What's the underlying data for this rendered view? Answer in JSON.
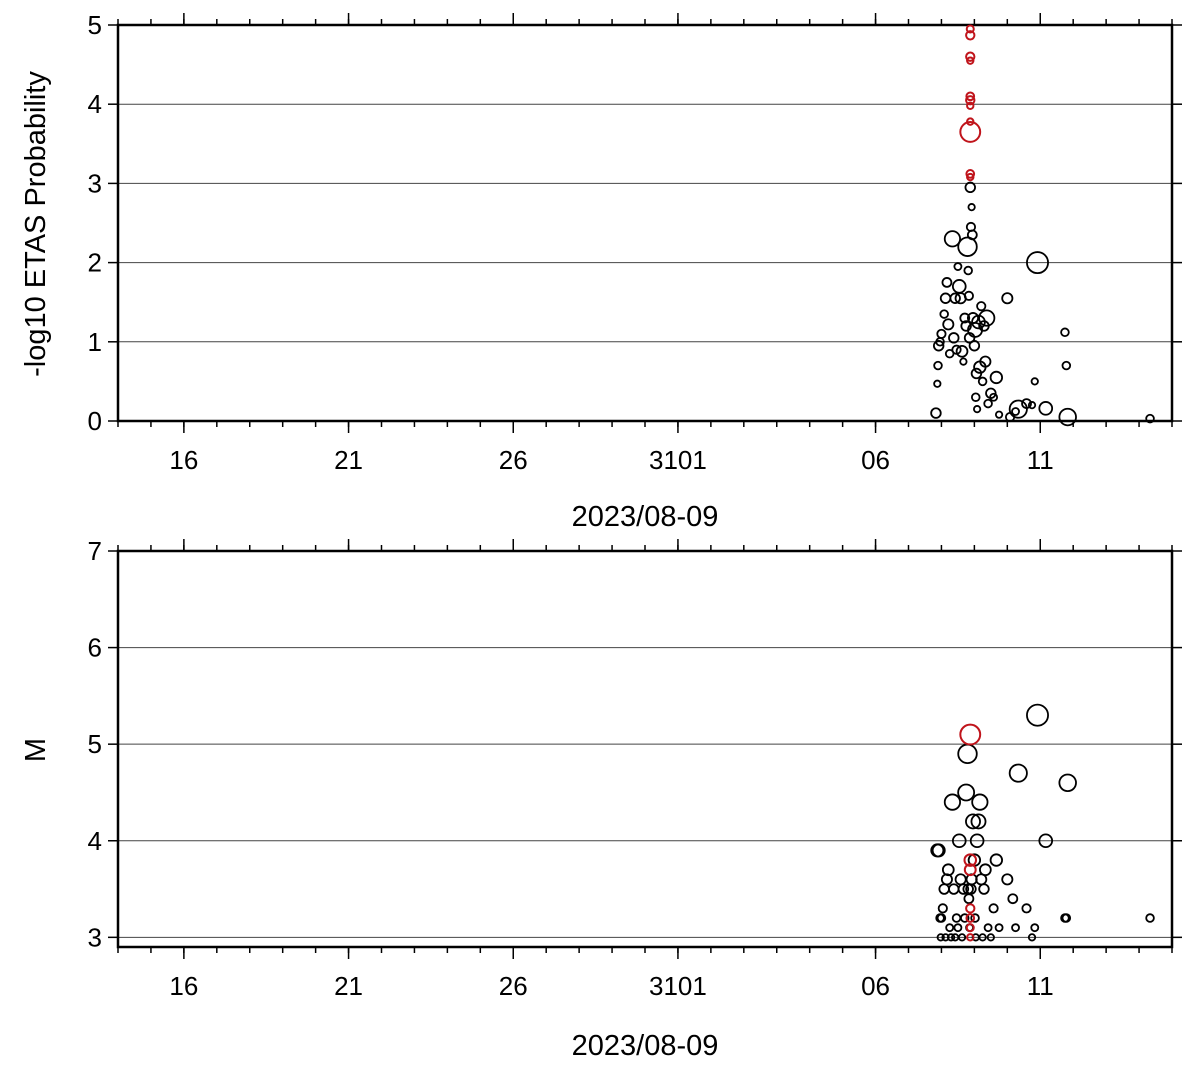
{
  "colors": {
    "normal": "#000000",
    "highlight": "#c0141b",
    "grid": "#444444",
    "frame": "#000000"
  },
  "chart_data": [
    {
      "type": "scatter",
      "xlabel": "2023/08-09",
      "ylabel": "-log10 ETAS Probability",
      "xlim": [
        "2023-08-14",
        "2023-09-15"
      ],
      "ylim": [
        0,
        5
      ],
      "x_tick_labels": [
        {
          "date": "2023-08-16",
          "label": "16"
        },
        {
          "date": "2023-08-21",
          "label": "21"
        },
        {
          "date": "2023-08-26",
          "label": "26"
        },
        {
          "date": "2023-08-31",
          "label": "3101"
        },
        {
          "date": "2023-09-06",
          "label": "06"
        },
        {
          "date": "2023-09-11",
          "label": "11"
        }
      ],
      "y_ticks": [
        0,
        1,
        2,
        3,
        4,
        5
      ],
      "grid": true,
      "marker_size": "by magnitude",
      "points": [
        {
          "t": "2023-09-07 20:00",
          "y": 0.1,
          "m": 3.5
        },
        {
          "t": "2023-09-07 21:00",
          "y": 0.47,
          "m": 3.0
        },
        {
          "t": "2023-09-07 21:30",
          "y": 0.7,
          "m": 3.2
        },
        {
          "t": "2023-09-07 22:00",
          "y": 0.95,
          "m": 3.5
        },
        {
          "t": "2023-09-07 23:00",
          "y": 1.0,
          "m": 3.2
        },
        {
          "t": "2023-09-08 00:00",
          "y": 1.1,
          "m": 3.3
        },
        {
          "t": "2023-09-08 02:00",
          "y": 1.35,
          "m": 3.2
        },
        {
          "t": "2023-09-08 03:00",
          "y": 1.55,
          "m": 3.5
        },
        {
          "t": "2023-09-08 04:00",
          "y": 1.75,
          "m": 3.4
        },
        {
          "t": "2023-09-08 05:00",
          "y": 1.22,
          "m": 3.6
        },
        {
          "t": "2023-09-08 06:00",
          "y": 0.85,
          "m": 3.2
        },
        {
          "t": "2023-09-08 08:00",
          "y": 2.3,
          "m": 4.4
        },
        {
          "t": "2023-09-08 09:00",
          "y": 1.05,
          "m": 3.5
        },
        {
          "t": "2023-09-08 10:00",
          "y": 1.55,
          "m": 3.5
        },
        {
          "t": "2023-09-08 11:00",
          "y": 0.9,
          "m": 3.3
        },
        {
          "t": "2023-09-08 12:00",
          "y": 1.95,
          "m": 3.1
        },
        {
          "t": "2023-09-08 13:00",
          "y": 1.7,
          "m": 4.0
        },
        {
          "t": "2023-09-08 14:00",
          "y": 1.55,
          "m": 3.6
        },
        {
          "t": "2023-09-08 15:00",
          "y": 0.88,
          "m": 3.7
        },
        {
          "t": "2023-09-08 16:00",
          "y": 0.75,
          "m": 3.0
        },
        {
          "t": "2023-09-08 17:00",
          "y": 1.3,
          "m": 3.4
        },
        {
          "t": "2023-09-08 18:00",
          "y": 1.2,
          "m": 3.5
        },
        {
          "t": "2023-09-08 19:00",
          "y": 2.2,
          "m": 4.9
        },
        {
          "t": "2023-09-08 19:30",
          "y": 1.9,
          "m": 3.2
        },
        {
          "t": "2023-09-08 20:00",
          "y": 1.58,
          "m": 3.3
        },
        {
          "t": "2023-09-08 20:30",
          "y": 1.05,
          "m": 3.5
        },
        {
          "t": "2023-09-08 21:00",
          "y": 2.95,
          "m": 3.5
        },
        {
          "t": "2023-09-08 21:30",
          "y": 2.45,
          "m": 3.3
        },
        {
          "t": "2023-09-08 22:00",
          "y": 2.7,
          "m": 3.0
        },
        {
          "t": "2023-09-08 22:30",
          "y": 2.35,
          "m": 3.4
        },
        {
          "t": "2023-09-08 23:00",
          "y": 1.3,
          "m": 3.6
        },
        {
          "t": "2023-09-09 00:00",
          "y": 0.95,
          "m": 3.5
        },
        {
          "t": "2023-09-09 00:30",
          "y": 1.15,
          "m": 4.2
        },
        {
          "t": "2023-09-09 01:00",
          "y": 0.3,
          "m": 3.2
        },
        {
          "t": "2023-09-09 01:30",
          "y": 0.6,
          "m": 3.5
        },
        {
          "t": "2023-09-09 02:00",
          "y": 0.15,
          "m": 3.0
        },
        {
          "t": "2023-09-09 03:00",
          "y": 1.25,
          "m": 4.0
        },
        {
          "t": "2023-09-09 04:00",
          "y": 0.68,
          "m": 3.8
        },
        {
          "t": "2023-09-09 05:00",
          "y": 1.45,
          "m": 3.3
        },
        {
          "t": "2023-09-09 06:00",
          "y": 0.5,
          "m": 3.2
        },
        {
          "t": "2023-09-09 07:00",
          "y": 1.2,
          "m": 3.5
        },
        {
          "t": "2023-09-09 08:00",
          "y": 0.75,
          "m": 3.6
        },
        {
          "t": "2023-09-09 09:00",
          "y": 1.3,
          "m": 4.4
        },
        {
          "t": "2023-09-09 10:00",
          "y": 0.22,
          "m": 3.2
        },
        {
          "t": "2023-09-09 12:00",
          "y": 0.35,
          "m": 3.5
        },
        {
          "t": "2023-09-09 14:00",
          "y": 0.3,
          "m": 3.1
        },
        {
          "t": "2023-09-09 16:00",
          "y": 0.55,
          "m": 3.8
        },
        {
          "t": "2023-09-09 18:00",
          "y": 0.08,
          "m": 3.0
        },
        {
          "t": "2023-09-10 00:00",
          "y": 1.55,
          "m": 3.6
        },
        {
          "t": "2023-09-10 02:00",
          "y": 0.05,
          "m": 3.3
        },
        {
          "t": "2023-09-10 06:00",
          "y": 0.12,
          "m": 3.1
        },
        {
          "t": "2023-09-10 08:00",
          "y": 0.15,
          "m": 4.7
        },
        {
          "t": "2023-09-10 14:00",
          "y": 0.22,
          "m": 3.4
        },
        {
          "t": "2023-09-10 18:00",
          "y": 0.2,
          "m": 3.0
        },
        {
          "t": "2023-09-10 20:00",
          "y": 0.5,
          "m": 3.0
        },
        {
          "t": "2023-09-10 22:00",
          "y": 2.0,
          "m": 5.3
        },
        {
          "t": "2023-09-11 04:00",
          "y": 0.16,
          "m": 4.0
        },
        {
          "t": "2023-09-11 18:00",
          "y": 1.12,
          "m": 3.2
        },
        {
          "t": "2023-09-11 19:00",
          "y": 0.7,
          "m": 3.2
        },
        {
          "t": "2023-09-11 20:00",
          "y": 0.05,
          "m": 4.6
        },
        {
          "t": "2023-09-14 08:00",
          "y": 0.03,
          "m": 3.2
        }
      ],
      "highlight_points": [
        {
          "t": "2023-09-08 21:00",
          "y": 4.95,
          "m": 3.1
        },
        {
          "t": "2023-09-08 21:00",
          "y": 4.87,
          "m": 3.3
        },
        {
          "t": "2023-09-08 21:00",
          "y": 4.6,
          "m": 3.3
        },
        {
          "t": "2023-09-08 21:00",
          "y": 4.55,
          "m": 3.0
        },
        {
          "t": "2023-09-08 21:00",
          "y": 4.1,
          "m": 3.2
        },
        {
          "t": "2023-09-08 21:00",
          "y": 4.05,
          "m": 3.3
        },
        {
          "t": "2023-09-08 21:00",
          "y": 3.98,
          "m": 3.0
        },
        {
          "t": "2023-09-08 21:00",
          "y": 3.78,
          "m": 3.0
        },
        {
          "t": "2023-09-08 21:00",
          "y": 3.65,
          "m": 5.1
        },
        {
          "t": "2023-09-08 21:00",
          "y": 3.12,
          "m": 3.2
        },
        {
          "t": "2023-09-08 21:00",
          "y": 3.08,
          "m": 3.0
        }
      ]
    },
    {
      "type": "scatter",
      "xlabel": "2023/08-09",
      "ylabel": "M",
      "xlim": [
        "2023-08-14",
        "2023-09-15"
      ],
      "ylim": [
        2.9,
        7
      ],
      "x_tick_labels": [
        {
          "date": "2023-08-16",
          "label": "16"
        },
        {
          "date": "2023-08-21",
          "label": "21"
        },
        {
          "date": "2023-08-26",
          "label": "26"
        },
        {
          "date": "2023-08-31",
          "label": "3101"
        },
        {
          "date": "2023-09-06",
          "label": "06"
        },
        {
          "date": "2023-09-11",
          "label": "11"
        }
      ],
      "y_ticks": [
        3,
        4,
        5,
        6,
        7
      ],
      "grid": true,
      "marker_size": "by magnitude",
      "points": [
        {
          "t": "2023-09-07 21:00",
          "y": 3.9
        },
        {
          "t": "2023-09-07 22:00",
          "y": 3.9
        },
        {
          "t": "2023-09-07 23:00",
          "y": 3.2
        },
        {
          "t": "2023-09-07 23:30",
          "y": 3.0
        },
        {
          "t": "2023-09-08 00:00",
          "y": 3.2
        },
        {
          "t": "2023-09-08 01:00",
          "y": 3.3
        },
        {
          "t": "2023-09-08 02:00",
          "y": 3.5
        },
        {
          "t": "2023-09-08 03:00",
          "y": 3.0
        },
        {
          "t": "2023-09-08 04:00",
          "y": 3.6
        },
        {
          "t": "2023-09-08 05:00",
          "y": 3.7
        },
        {
          "t": "2023-09-08 06:00",
          "y": 3.1
        },
        {
          "t": "2023-09-08 07:00",
          "y": 3.0
        },
        {
          "t": "2023-09-08 08:00",
          "y": 4.4
        },
        {
          "t": "2023-09-08 09:00",
          "y": 3.5
        },
        {
          "t": "2023-09-08 10:00",
          "y": 3.0
        },
        {
          "t": "2023-09-08 11:00",
          "y": 3.2
        },
        {
          "t": "2023-09-08 12:00",
          "y": 3.1
        },
        {
          "t": "2023-09-08 13:00",
          "y": 4.0
        },
        {
          "t": "2023-09-08 14:00",
          "y": 3.6
        },
        {
          "t": "2023-09-08 15:00",
          "y": 3.0
        },
        {
          "t": "2023-09-08 16:00",
          "y": 3.5
        },
        {
          "t": "2023-09-08 17:00",
          "y": 3.2
        },
        {
          "t": "2023-09-08 18:00",
          "y": 4.5
        },
        {
          "t": "2023-09-08 19:00",
          "y": 4.9
        },
        {
          "t": "2023-09-08 19:30",
          "y": 3.5
        },
        {
          "t": "2023-09-08 20:00",
          "y": 3.4
        },
        {
          "t": "2023-09-08 20:30",
          "y": 3.1
        },
        {
          "t": "2023-09-08 21:30",
          "y": 3.5
        },
        {
          "t": "2023-09-08 22:00",
          "y": 3.6
        },
        {
          "t": "2023-09-08 23:00",
          "y": 4.2
        },
        {
          "t": "2023-09-09 00:00",
          "y": 3.8
        },
        {
          "t": "2023-09-09 00:30",
          "y": 3.2
        },
        {
          "t": "2023-09-09 01:00",
          "y": 3.0
        },
        {
          "t": "2023-09-09 02:00",
          "y": 4.0
        },
        {
          "t": "2023-09-09 03:00",
          "y": 4.2
        },
        {
          "t": "2023-09-09 04:00",
          "y": 4.4
        },
        {
          "t": "2023-09-09 05:00",
          "y": 3.6
        },
        {
          "t": "2023-09-09 06:00",
          "y": 3.0
        },
        {
          "t": "2023-09-09 07:00",
          "y": 3.5
        },
        {
          "t": "2023-09-09 08:00",
          "y": 3.7
        },
        {
          "t": "2023-09-09 10:00",
          "y": 3.1
        },
        {
          "t": "2023-09-09 12:00",
          "y": 3.0
        },
        {
          "t": "2023-09-09 14:00",
          "y": 3.3
        },
        {
          "t": "2023-09-09 16:00",
          "y": 3.8
        },
        {
          "t": "2023-09-09 18:00",
          "y": 3.1
        },
        {
          "t": "2023-09-10 00:00",
          "y": 3.6
        },
        {
          "t": "2023-09-10 04:00",
          "y": 3.4
        },
        {
          "t": "2023-09-10 06:00",
          "y": 3.1
        },
        {
          "t": "2023-09-10 08:00",
          "y": 4.7
        },
        {
          "t": "2023-09-10 14:00",
          "y": 3.3
        },
        {
          "t": "2023-09-10 18:00",
          "y": 3.0
        },
        {
          "t": "2023-09-10 20:00",
          "y": 3.1
        },
        {
          "t": "2023-09-10 22:00",
          "y": 5.3
        },
        {
          "t": "2023-09-11 04:00",
          "y": 4.0
        },
        {
          "t": "2023-09-11 18:00",
          "y": 3.2
        },
        {
          "t": "2023-09-11 19:00",
          "y": 3.2
        },
        {
          "t": "2023-09-11 20:00",
          "y": 4.6
        },
        {
          "t": "2023-09-14 08:00",
          "y": 3.2
        }
      ],
      "highlight_points": [
        {
          "t": "2023-09-08 21:00",
          "y": 5.1
        },
        {
          "t": "2023-09-08 21:00",
          "y": 3.8
        },
        {
          "t": "2023-09-08 21:00",
          "y": 3.7
        },
        {
          "t": "2023-09-08 21:00",
          "y": 3.3
        },
        {
          "t": "2023-09-08 21:00",
          "y": 3.2
        },
        {
          "t": "2023-09-08 21:00",
          "y": 3.1
        },
        {
          "t": "2023-09-08 21:00",
          "y": 3.0
        }
      ]
    }
  ]
}
